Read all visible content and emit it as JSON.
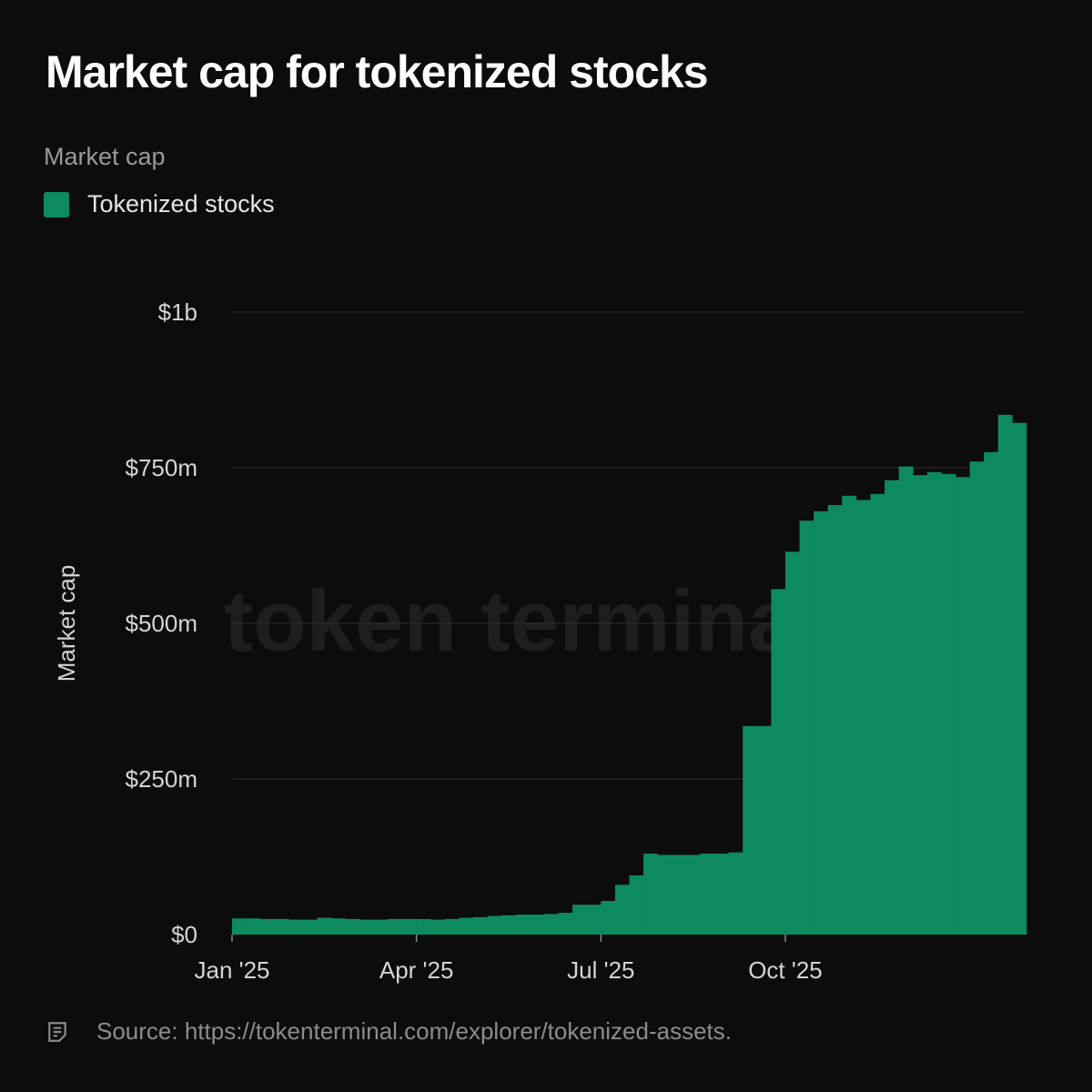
{
  "page": {
    "title": "Market cap for tokenized stocks",
    "subtitle": "Market cap",
    "legend_label": "Tokenized stocks",
    "watermark": "token terminal_",
    "source": "Source: https://tokenterminal.com/explorer/tokenized-assets."
  },
  "colors": {
    "background": "#0c0c0c",
    "bar": "#0e8a5f",
    "grid": "#2e2e2e",
    "tick_text": "#d4d4d4",
    "watermark": "#1e1e1e"
  },
  "chart_data": {
    "type": "bar",
    "title": "Market cap for tokenized stocks",
    "subtitle": "Market cap",
    "ylabel": "Market cap",
    "xlabel": "",
    "ylim": [
      0,
      1000
    ],
    "value_unit": "$m",
    "yticks": [
      {
        "value": 0,
        "label": "$0"
      },
      {
        "value": 250,
        "label": "$250m"
      },
      {
        "value": 500,
        "label": "$500m"
      },
      {
        "value": 750,
        "label": "$750m"
      },
      {
        "value": 1000,
        "label": "$1b"
      }
    ],
    "xticks": [
      {
        "week": 0,
        "label": "Jan '25"
      },
      {
        "week": 13,
        "label": "Apr '25"
      },
      {
        "week": 26,
        "label": "Jul '25"
      },
      {
        "week": 39,
        "label": "Oct '25"
      }
    ],
    "grid": true,
    "legend": "top-left",
    "series": [
      {
        "name": "Tokenized stocks",
        "note": "approximate weekly values from start of Jan 2025",
        "values": [
          26,
          26,
          25,
          25,
          24,
          24,
          27,
          26,
          25,
          24,
          24,
          25,
          25,
          25,
          24,
          25,
          27,
          28,
          30,
          31,
          32,
          32,
          33,
          35,
          48,
          48,
          54,
          80,
          95,
          130,
          128,
          128,
          128,
          130,
          130,
          132,
          335,
          335,
          555,
          615,
          665,
          680,
          690,
          705,
          698,
          708,
          730,
          752,
          738,
          743,
          740,
          735,
          760,
          775,
          835,
          822
        ]
      }
    ]
  }
}
